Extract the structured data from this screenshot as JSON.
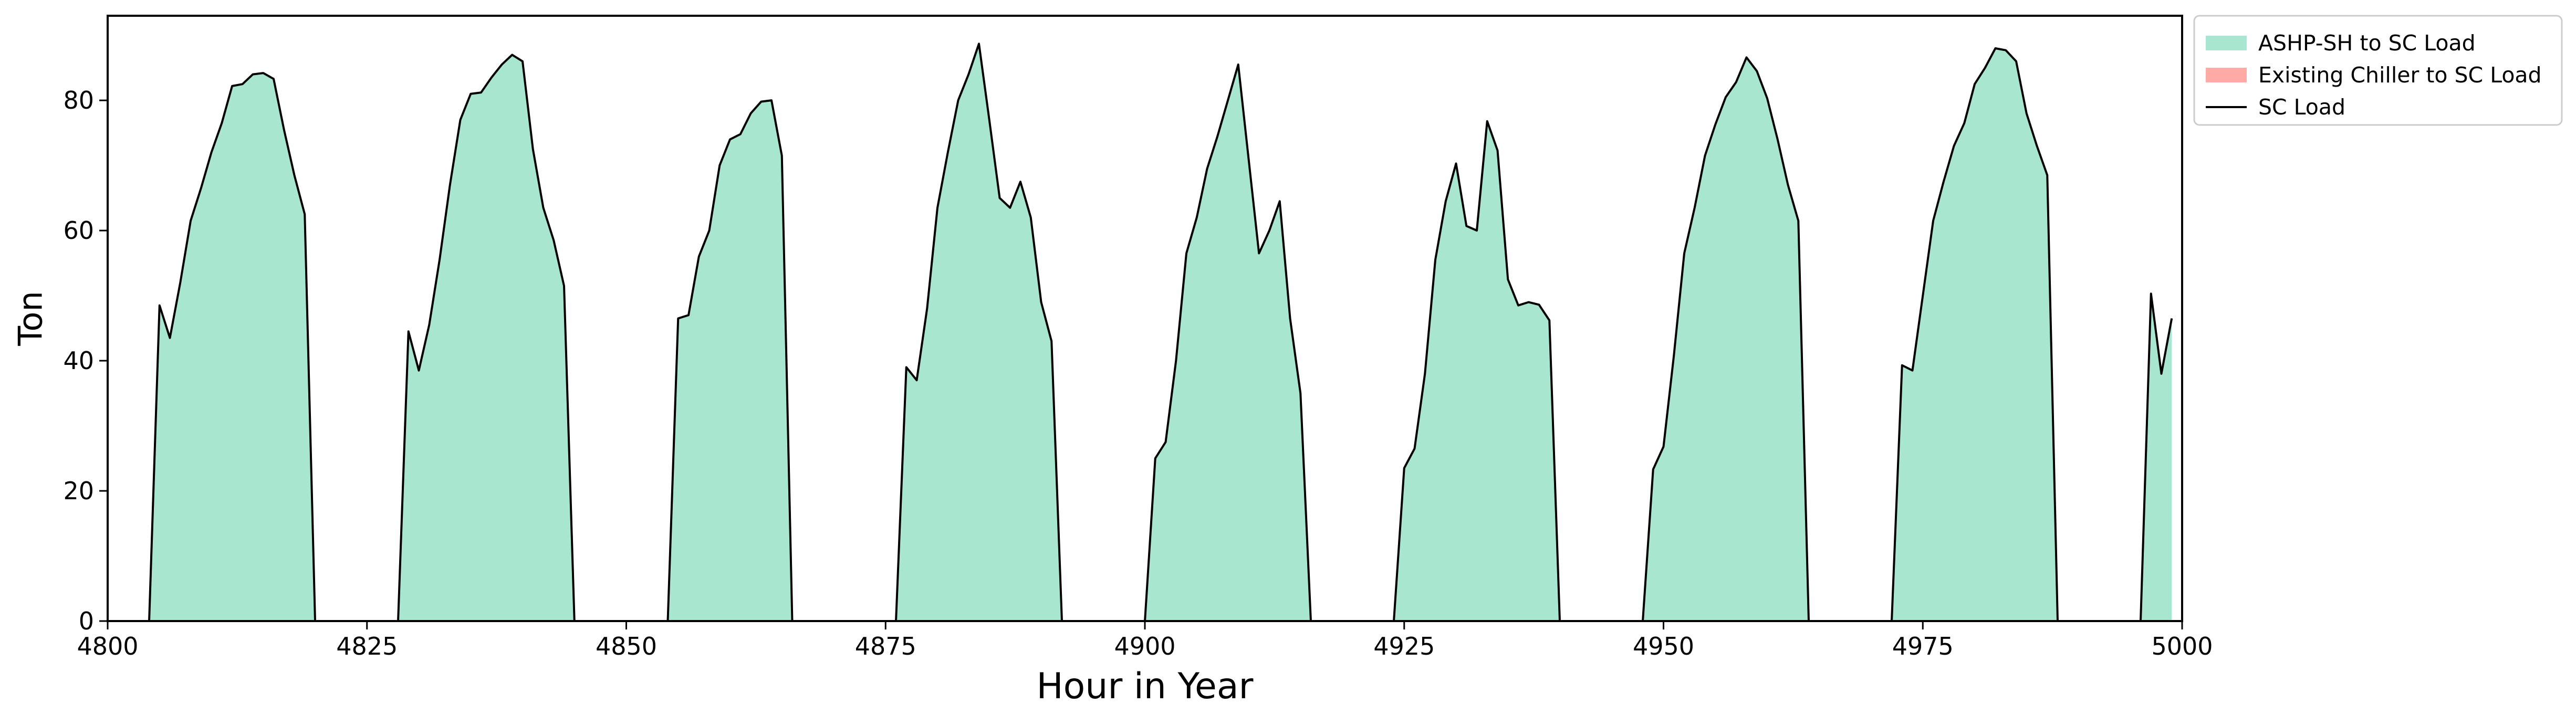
{
  "chart_data": {
    "type": "area",
    "xlabel": "Hour in Year",
    "ylabel": "Ton",
    "xlim": [
      4800,
      5000
    ],
    "ylim": [
      0,
      93
    ],
    "xticks": [
      4800,
      4825,
      4850,
      4875,
      4900,
      4925,
      4950,
      4975,
      5000
    ],
    "yticks": [
      0,
      20,
      40,
      60,
      80
    ],
    "grid": false,
    "legend_position": "outside-top-right",
    "legend": [
      {
        "label": "ASHP-SH to SC Load",
        "kind": "patch",
        "color": "#a8e6cf"
      },
      {
        "label": "Existing Chiller to SC Load",
        "kind": "patch",
        "color": "#ffaaa5"
      },
      {
        "label": "SC Load",
        "kind": "line",
        "color": "#000000"
      }
    ],
    "series": [
      {
        "name": "SC Load",
        "color": "#000000",
        "x": [
          4800,
          4804,
          4805,
          4806,
          4807,
          4808,
          4809,
          4810,
          4811,
          4812,
          4813,
          4814,
          4815,
          4816,
          4817,
          4818,
          4819,
          4820,
          4828,
          4829,
          4830,
          4831,
          4832,
          4833,
          4834,
          4835,
          4836,
          4837,
          4838,
          4839,
          4840,
          4841,
          4842,
          4843,
          4844,
          4845,
          4854,
          4855,
          4856,
          4857,
          4858,
          4859,
          4860,
          4861,
          4862,
          4863,
          4864,
          4865,
          4866,
          4876,
          4877,
          4878,
          4879,
          4880,
          4881,
          4882,
          4883,
          4884,
          4885,
          4886,
          4887,
          4888,
          4889,
          4890,
          4891,
          4892,
          4900,
          4901,
          4902,
          4903,
          4904,
          4905,
          4906,
          4907,
          4908,
          4909,
          4910,
          4911,
          4912,
          4913,
          4914,
          4915,
          4916,
          4924,
          4925,
          4926,
          4927,
          4928,
          4929,
          4930,
          4931,
          4932,
          4933,
          4934,
          4935,
          4936,
          4937,
          4938,
          4939,
          4940,
          4948,
          4949,
          4950,
          4951,
          4952,
          4953,
          4954,
          4955,
          4956,
          4957,
          4958,
          4959,
          4960,
          4961,
          4962,
          4963,
          4964,
          4972,
          4973,
          4974,
          4975,
          4976,
          4977,
          4978,
          4979,
          4980,
          4981,
          4982,
          4983,
          4984,
          4985,
          4986,
          4987,
          4988,
          4996,
          4997,
          4998,
          4999
        ],
        "y": [
          0,
          0,
          48.5,
          43.5,
          52,
          61.5,
          66.5,
          72,
          76.5,
          82.2,
          82.5,
          84,
          84.2,
          83.3,
          75.5,
          68.5,
          62.5,
          0,
          0,
          44.5,
          38.5,
          45.5,
          55.5,
          67,
          77,
          81,
          81.2,
          83.5,
          85.5,
          87,
          86,
          72.5,
          63.5,
          58.5,
          51.5,
          0,
          0,
          46.5,
          47,
          56,
          60,
          70,
          74,
          74.8,
          78,
          79.8,
          80,
          71.5,
          0,
          0,
          39,
          37,
          48,
          63.5,
          72,
          80,
          84,
          88.7,
          77,
          65,
          63.5,
          67.5,
          62,
          49,
          43,
          0,
          0,
          25,
          27.5,
          40,
          56.5,
          62,
          69.5,
          74.5,
          80,
          85.5,
          71,
          56.5,
          60,
          64.5,
          46.5,
          35,
          0,
          0,
          23.5,
          26.5,
          38,
          55.5,
          64.5,
          70.3,
          60.7,
          60,
          76.8,
          72.3,
          52.5,
          48.5,
          49,
          48.6,
          46.2,
          0,
          0,
          23.3,
          26.8,
          40.8,
          56.5,
          63.5,
          71.5,
          76.3,
          80.5,
          82.8,
          86.6,
          84.5,
          80.3,
          74,
          67,
          61.5,
          0,
          0,
          39.3,
          38.5,
          50,
          61.5,
          67.5,
          73,
          76.5,
          82.5,
          85,
          88,
          87.7,
          86,
          78,
          73,
          68.5,
          0,
          0,
          50.3,
          38,
          46.5
        ]
      }
    ],
    "fill_series": {
      "name": "ASHP-SH to SC Load",
      "color": "#a8e6cf",
      "equals": "SC Load"
    }
  }
}
